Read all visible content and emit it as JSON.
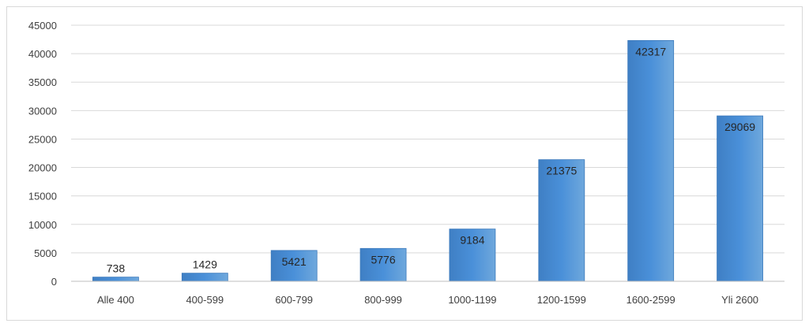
{
  "chart_data": {
    "type": "bar",
    "title": "",
    "xlabel": "",
    "ylabel": "",
    "categories": [
      "Alle 400",
      "400-599",
      "600-799",
      "800-999",
      "1000-1199",
      "1200-1599",
      "1600-2599",
      "Yli 2600"
    ],
    "values": [
      738,
      1429,
      5421,
      5776,
      9184,
      21375,
      42317,
      29069
    ],
    "ylim": [
      0,
      45000
    ],
    "yticks": [
      0,
      5000,
      10000,
      15000,
      20000,
      25000,
      30000,
      35000,
      40000,
      45000
    ],
    "grid": true,
    "legend": "none",
    "data_labels": true,
    "colors": {
      "bar_top": "#6fa8dc",
      "bar_mid": "#4a90d9",
      "bar_bottom": "#3f7fc4",
      "bar_edge": "#3a78bb",
      "gridline": "#d9d9d9",
      "axis": "#bfbfbf"
    }
  }
}
